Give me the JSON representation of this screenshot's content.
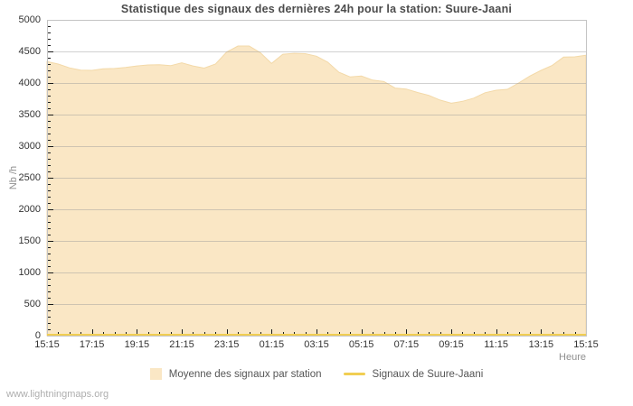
{
  "title": "Statistique des signaux des dernières 24h pour la station: Suure-Jaani",
  "watermark": "www.lightningmaps.org",
  "axes": {
    "y_label": "Nb /h",
    "x_label": "Heure"
  },
  "legend": {
    "items": [
      {
        "label": "Moyenne des signaux par station",
        "swatch": "fill",
        "color": "#fae7c5"
      },
      {
        "label": "Signaux de Suure-Jaani",
        "swatch": "line",
        "color": "#f1ce52"
      }
    ]
  },
  "colors": {
    "area_fill": "#fae7c5",
    "area_edge": "#f3d9a8",
    "zero_line": "#f1ce52",
    "grid_line": "#999999",
    "plot_border": "#c4c4c4",
    "tick": "#1a1a1a"
  },
  "chart_data": {
    "type": "area",
    "title": "Statistique des signaux des dernières 24h pour la station: Suure-Jaani",
    "xlabel": "Heure",
    "ylabel": "Nb /h",
    "ylim": [
      0,
      5000
    ],
    "y_tick_step": 500,
    "y_minor_step": 100,
    "x_tick_interval_minutes": 30,
    "x_label_interval_hours": 2,
    "grid": "horizontal-only",
    "legend_position": "bottom-center",
    "x_major_tick_labels": [
      "15:15",
      "17:15",
      "19:15",
      "21:15",
      "23:15",
      "01:15",
      "03:15",
      "05:15",
      "07:15",
      "09:15",
      "11:15",
      "13:15",
      "15:15"
    ],
    "x": [
      "15:15",
      "15:45",
      "16:15",
      "16:45",
      "17:15",
      "17:45",
      "18:15",
      "18:45",
      "19:15",
      "19:45",
      "20:15",
      "20:45",
      "21:15",
      "21:45",
      "22:15",
      "22:45",
      "23:15",
      "23:45",
      "00:15",
      "00:45",
      "01:15",
      "01:45",
      "02:15",
      "02:45",
      "03:15",
      "03:45",
      "04:15",
      "04:45",
      "05:15",
      "05:45",
      "06:15",
      "06:45",
      "07:15",
      "07:45",
      "08:15",
      "08:45",
      "09:15",
      "09:45",
      "10:15",
      "10:45",
      "11:15",
      "11:45",
      "12:15",
      "12:45",
      "13:15",
      "13:45",
      "14:15",
      "14:45",
      "15:15"
    ],
    "series": [
      {
        "name": "Moyenne des signaux par station",
        "type": "area",
        "color": "#fae7c5",
        "edge_color": "#f3d9a8",
        "values": [
          4340,
          4300,
          4240,
          4205,
          4200,
          4225,
          4230,
          4245,
          4270,
          4285,
          4290,
          4275,
          4320,
          4270,
          4235,
          4300,
          4490,
          4585,
          4585,
          4480,
          4310,
          4455,
          4470,
          4465,
          4425,
          4330,
          4170,
          4095,
          4110,
          4045,
          4025,
          3920,
          3905,
          3850,
          3805,
          3730,
          3680,
          3710,
          3760,
          3845,
          3885,
          3900,
          4000,
          4110,
          4200,
          4280,
          4410,
          4415,
          4440
        ]
      },
      {
        "name": "Signaux de Suure-Jaani",
        "type": "line",
        "color": "#f1ce52",
        "values": [
          0,
          0,
          0,
          0,
          0,
          0,
          0,
          0,
          0,
          0,
          0,
          0,
          0,
          0,
          0,
          0,
          0,
          0,
          0,
          0,
          0,
          0,
          0,
          0,
          0,
          0,
          0,
          0,
          0,
          0,
          0,
          0,
          0,
          0,
          0,
          0,
          0,
          0,
          0,
          0,
          0,
          0,
          0,
          0,
          0,
          0,
          0,
          0,
          0
        ]
      }
    ]
  }
}
